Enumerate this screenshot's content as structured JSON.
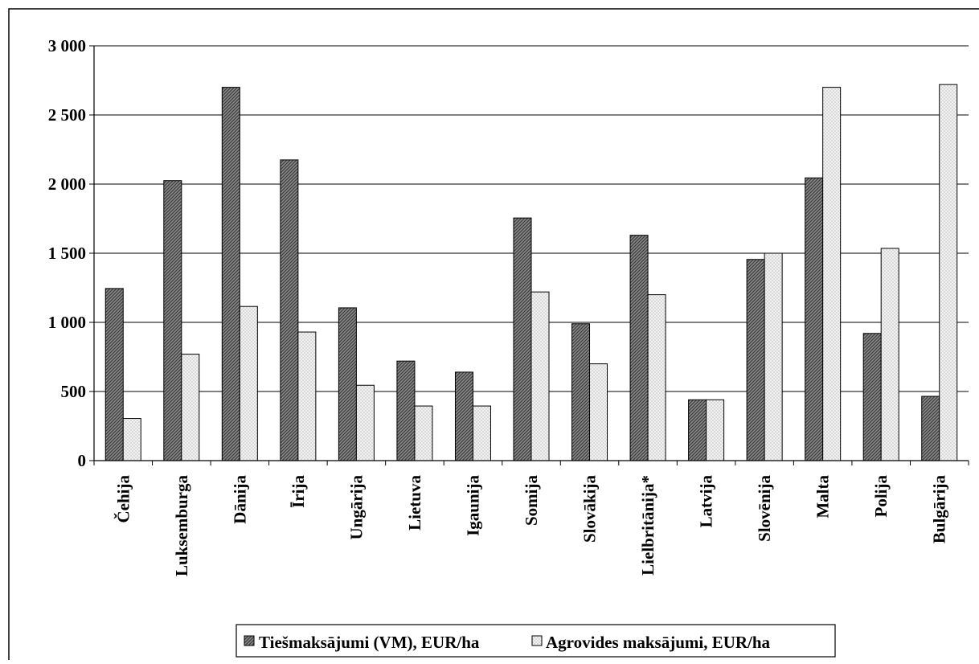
{
  "chart_data": {
    "type": "bar",
    "categories": [
      "Čehija",
      "Luksemburga",
      "Dānija",
      "Īrija",
      "Ungārija",
      "Lietuva",
      "Igaunija",
      "Somija",
      "Slovākija",
      "Lielbritānija*",
      "Latvija",
      "Slovēnija",
      "Malta",
      "Polija",
      "Bulgārija"
    ],
    "series": [
      {
        "name": "Tiešmaksājumi (VM), EUR/ha",
        "values": [
          1245,
          2025,
          2700,
          2175,
          1105,
          720,
          640,
          1755,
          990,
          1630,
          440,
          1455,
          2045,
          920,
          465
        ],
        "color": "#606060",
        "pattern": "dark-hatch"
      },
      {
        "name": "Agrovides maksājumi, EUR/ha",
        "values": [
          305,
          770,
          1115,
          930,
          545,
          395,
          395,
          1220,
          700,
          1200,
          440,
          1500,
          2700,
          1535,
          2720
        ],
        "color": "#e6e6e6",
        "pattern": "light-dots"
      }
    ],
    "y_ticks": [
      "0",
      "500",
      "1 000",
      "1 500",
      "2 000",
      "2 500",
      "3 000"
    ],
    "ylim": [
      0,
      3000
    ],
    "grid": true,
    "legend_position": "bottom"
  }
}
